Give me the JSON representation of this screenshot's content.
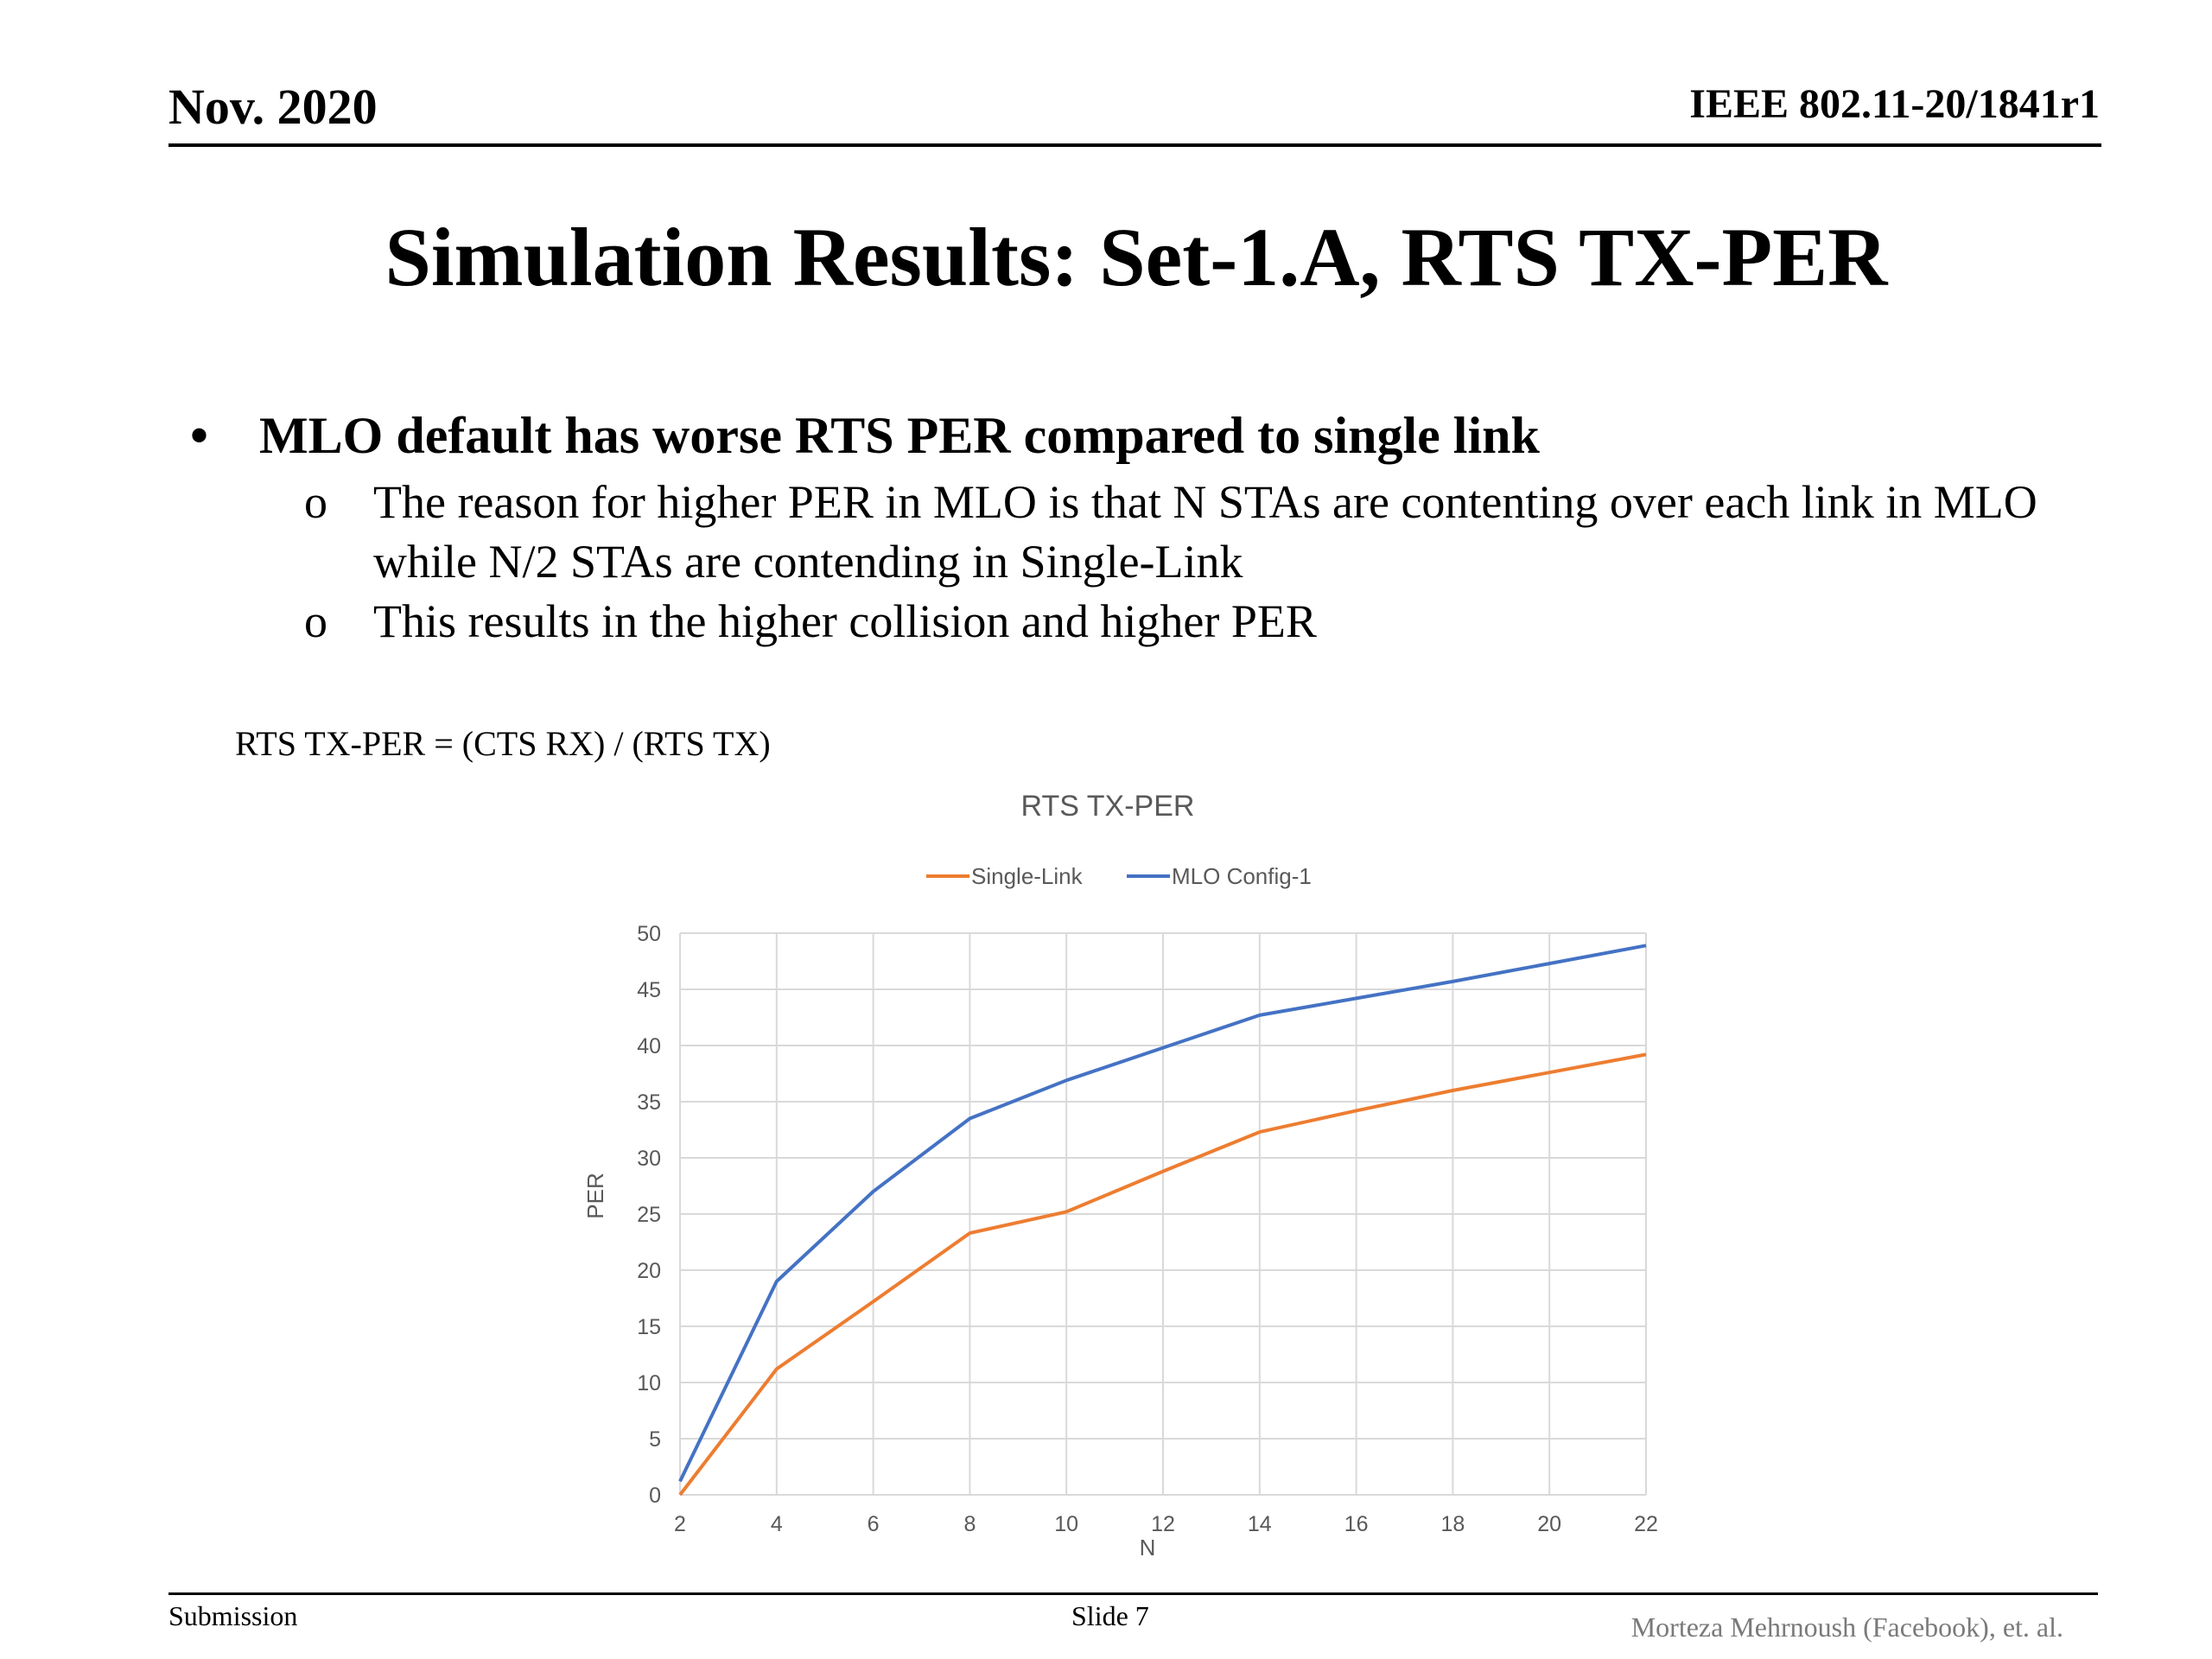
{
  "header": {
    "date": "Nov. 2020",
    "doc_id": "IEEE 802.11-20/1841r1"
  },
  "slide": {
    "title": "Simulation Results: Set-1.A, RTS TX-PER",
    "bullet": "MLO default has worse RTS PER compared to single link",
    "sub_bullet_marker": "o",
    "bullet_marker": "•",
    "sub_bullets": [
      "The reason for higher PER in MLO is that N STAs are contenting over each link in MLO while N/2 STAs are contending in Single-Link",
      "This results in the higher collision and higher PER"
    ],
    "formula": "RTS TX-PER = (CTS RX) / (RTS TX)"
  },
  "chart_data": {
    "type": "line",
    "title": "RTS TX-PER",
    "xlabel": "N",
    "ylabel": "PER",
    "x": [
      2,
      4,
      6,
      8,
      10,
      12,
      14,
      16,
      18,
      20,
      22
    ],
    "xlim": [
      2,
      22
    ],
    "ylim": [
      0,
      50
    ],
    "xticks": [
      "2",
      "4",
      "6",
      "8",
      "10",
      "12",
      "14",
      "16",
      "18",
      "20",
      "22"
    ],
    "yticks": [
      "0",
      "5",
      "10",
      "15",
      "20",
      "25",
      "30",
      "35",
      "40",
      "45",
      "50"
    ],
    "grid": true,
    "legend_position": "top",
    "series": [
      {
        "name": "Single-Link",
        "color": "#ED7D31",
        "values": [
          0,
          11.2,
          17.2,
          23.3,
          25.2,
          28.8,
          32.3,
          34.2,
          36.0,
          37.6,
          39.2
        ]
      },
      {
        "name": "MLO Config-1",
        "color": "#4472C4",
        "values": [
          1.2,
          19.0,
          27.0,
          33.5,
          36.9,
          39.8,
          42.7,
          44.2,
          45.7,
          47.3,
          48.9
        ]
      }
    ]
  },
  "footer": {
    "left": "Submission",
    "center": "Slide 7",
    "right": "Morteza Mehrnoush (Facebook), et. al."
  }
}
